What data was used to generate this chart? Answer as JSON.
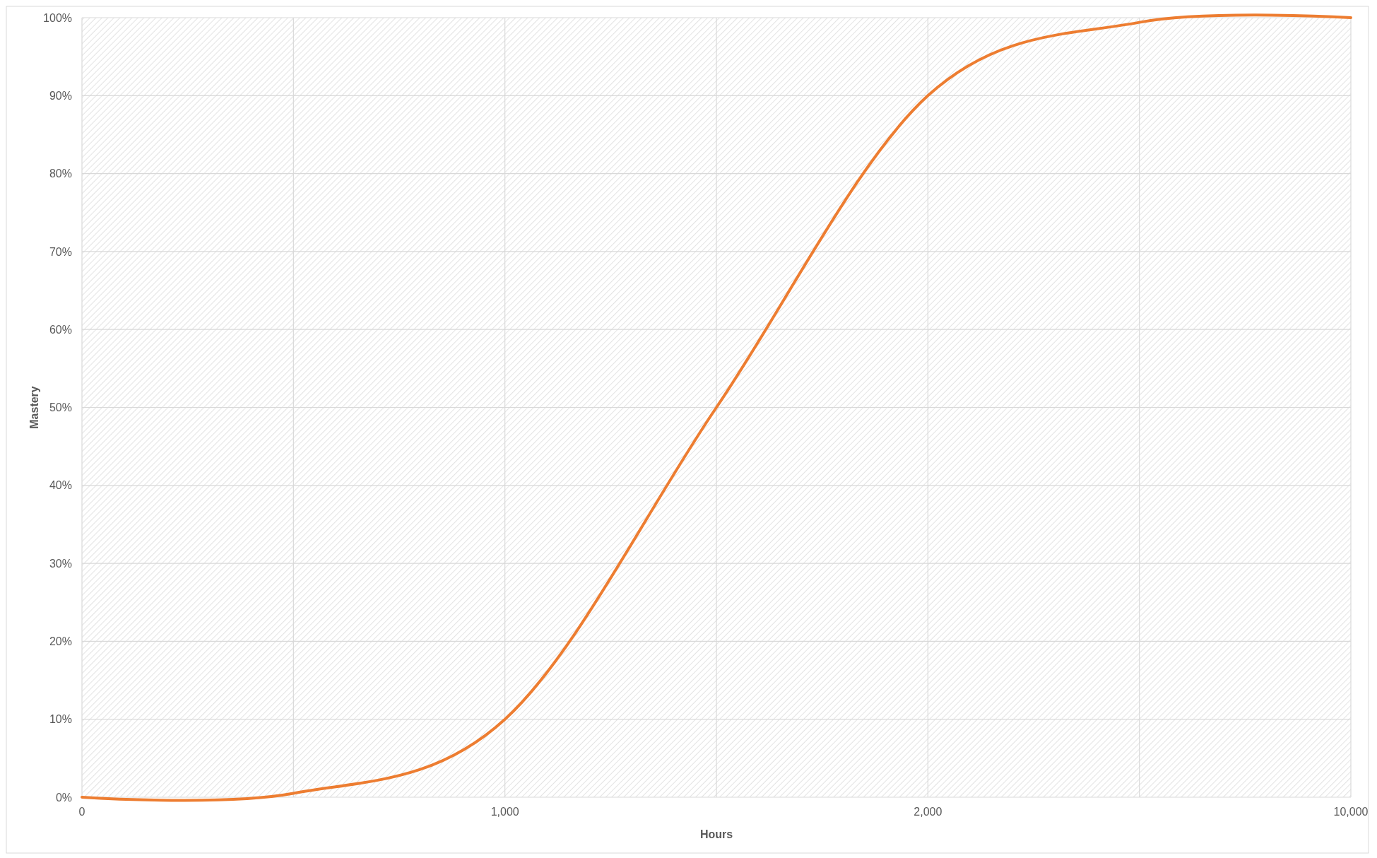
{
  "chart_data": {
    "type": "line",
    "xlabel": "Hours",
    "ylabel": "Mastery",
    "categories": [
      "0",
      null,
      "1,000",
      null,
      "2,000",
      null,
      "10,000"
    ],
    "series": [
      {
        "color": "#ed7d31",
        "values": [
          0,
          0.5,
          10,
          50,
          90,
          99.4,
          100
        ]
      }
    ],
    "ylim": [
      0,
      100
    ],
    "yticks": [
      {
        "value": 0,
        "label": "0%"
      },
      {
        "value": 10,
        "label": "10%"
      },
      {
        "value": 20,
        "label": "20%"
      },
      {
        "value": 30,
        "label": "30%"
      },
      {
        "value": 40,
        "label": "40%"
      },
      {
        "value": 50,
        "label": "50%"
      },
      {
        "value": 60,
        "label": "60%"
      },
      {
        "value": 70,
        "label": "70%"
      },
      {
        "value": 80,
        "label": "80%"
      },
      {
        "value": 90,
        "label": "90%"
      },
      {
        "value": 100,
        "label": "100%"
      }
    ],
    "grid": true,
    "marker": "none",
    "line_style": "solid"
  }
}
